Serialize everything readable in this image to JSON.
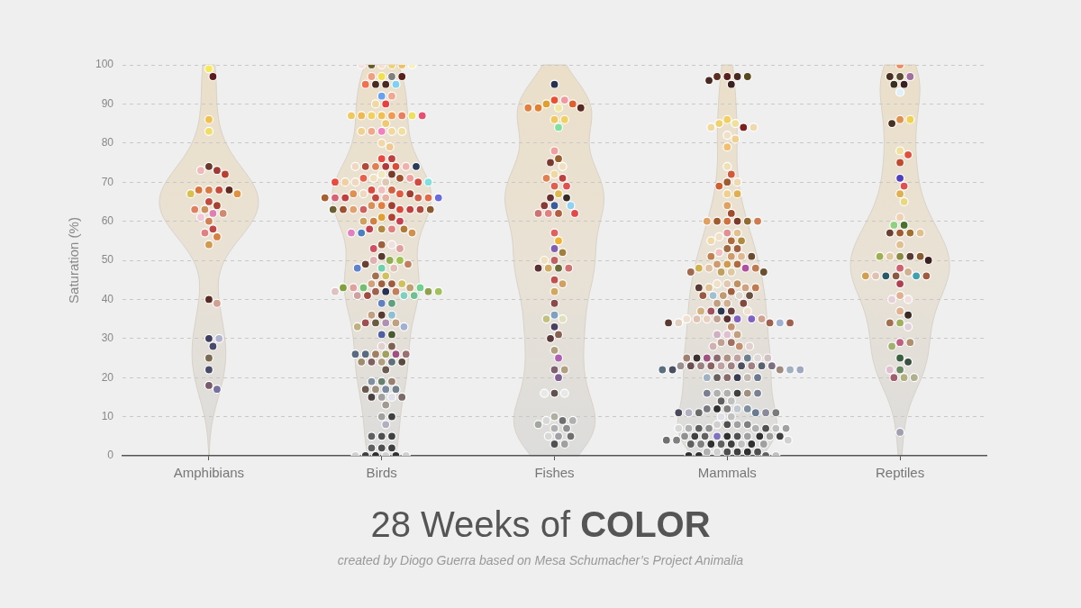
{
  "chart_data": {
    "type": "scatter",
    "title": "28 Weeks of COLOR",
    "ylabel": "Saturation (%)",
    "annotations": [
      "created by Diogo Guerra based on Mesa Schumacher’s Project Animalia"
    ],
    "categories": [
      "Amphibians",
      "Birds",
      "Fishes",
      "Mammals",
      "Reptiles"
    ],
    "ylim": [
      0,
      100
    ],
    "yticks": [
      0,
      10,
      20,
      30,
      40,
      50,
      60,
      70,
      80,
      90,
      100
    ],
    "grid": "y",
    "legend": false,
    "marker": "circle",
    "series": [
      {
        "x": [
          "Amphibians",
          "Amphibians",
          "Amphibians",
          "Amphibians",
          "Amphibians",
          "Amphibians",
          "Amphibians",
          "Amphibians",
          "Amphibians",
          "Amphibians",
          "Amphibians",
          "Amphibians",
          "Amphibians",
          "Amphibians",
          "Amphibians",
          "Amphibians",
          "Amphibians",
          "Amphibians",
          "Amphibians",
          "Amphibians",
          "Amphibians",
          "Amphibians",
          "Amphibians",
          "Amphibians",
          "Amphibians",
          "Amphibians",
          "Amphibians",
          "Amphibians",
          "Amphibians",
          "Amphibians",
          "Amphibians",
          "Amphibians",
          "Amphibians",
          "Amphibians",
          "Amphibians"
        ],
        "values": [
          99,
          97,
          86,
          83,
          74,
          73,
          73,
          72,
          68,
          68,
          68,
          68,
          67,
          67,
          65,
          64,
          63,
          63,
          62,
          62,
          61,
          60,
          58,
          57,
          56,
          54,
          40,
          39,
          30,
          30,
          28,
          25,
          22,
          18,
          17
        ],
        "colors": [
          "#f5e85a",
          "#5a1e1e",
          "#f0c050",
          "#eedd66",
          "#6b3a2a",
          "#a03a35",
          "#f0b8b8",
          "#b84030",
          "#d97a45",
          "#c84a3a",
          "#d9743d",
          "#5e2a20",
          "#d8c050",
          "#e0923f",
          "#c04a40",
          "#a84030",
          "#d0905a",
          "#e08060",
          "#e080b0",
          "#d08a70",
          "#f0c8d8",
          "#d08055",
          "#c04545",
          "#e08080",
          "#d88040",
          "#d09a50",
          "#5a2a25",
          "#d0a090",
          "#3e3e5e",
          "#b0b0d0",
          "#4a4a6a",
          "#7a6a50",
          "#4a4a6a",
          "#7a5a6a",
          "#7a70a0"
        ]
      },
      {
        "x": [
          "Birds",
          "Birds",
          "Birds",
          "Birds",
          "Birds",
          "Birds",
          "Birds",
          "Birds",
          "Birds",
          "Birds",
          "Birds",
          "Birds",
          "Birds",
          "Birds",
          "Birds",
          "Birds",
          "Birds",
          "Birds",
          "Birds",
          "Birds",
          "Birds",
          "Birds",
          "Birds",
          "Birds",
          "Birds",
          "Birds",
          "Birds",
          "Birds",
          "Birds",
          "Birds",
          "Birds",
          "Birds",
          "Birds",
          "Birds",
          "Birds",
          "Birds",
          "Birds",
          "Birds",
          "Birds",
          "Birds",
          "Birds",
          "Birds",
          "Birds",
          "Birds",
          "Birds",
          "Birds",
          "Birds",
          "Birds",
          "Birds",
          "Birds",
          "Birds",
          "Birds",
          "Birds",
          "Birds",
          "Birds",
          "Birds",
          "Birds",
          "Birds",
          "Birds",
          "Birds",
          "Birds",
          "Birds",
          "Birds",
          "Birds",
          "Birds",
          "Birds",
          "Birds",
          "Birds",
          "Birds",
          "Birds",
          "Birds",
          "Birds",
          "Birds",
          "Birds",
          "Birds",
          "Birds",
          "Birds",
          "Birds",
          "Birds",
          "Birds",
          "Birds",
          "Birds",
          "Birds",
          "Birds",
          "Birds",
          "Birds",
          "Birds",
          "Birds",
          "Birds",
          "Birds",
          "Birds",
          "Birds",
          "Birds",
          "Birds",
          "Birds",
          "Birds",
          "Birds",
          "Birds",
          "Birds",
          "Birds",
          "Birds",
          "Birds",
          "Birds",
          "Birds",
          "Birds",
          "Birds",
          "Birds",
          "Birds",
          "Birds",
          "Birds",
          "Birds",
          "Birds",
          "Birds",
          "Birds",
          "Birds",
          "Birds",
          "Birds",
          "Birds",
          "Birds",
          "Birds",
          "Birds",
          "Birds",
          "Birds",
          "Birds",
          "Birds",
          "Birds",
          "Birds",
          "Birds",
          "Birds",
          "Birds",
          "Birds",
          "Birds",
          "Birds",
          "Birds",
          "Birds",
          "Birds",
          "Birds",
          "Birds",
          "Birds",
          "Birds",
          "Birds",
          "Birds",
          "Birds",
          "Birds",
          "Birds",
          "Birds",
          "Birds",
          "Birds",
          "Birds",
          "Birds",
          "Birds",
          "Birds",
          "Birds",
          "Birds",
          "Birds",
          "Birds",
          "Birds",
          "Birds",
          "Birds",
          "Birds",
          "Birds",
          "Birds",
          "Birds",
          "Birds",
          "Birds",
          "Birds",
          "Birds",
          "Birds",
          "Birds",
          "Birds",
          "Birds",
          "Birds",
          "Birds",
          "Birds",
          "Birds",
          "Birds",
          "Birds",
          "Birds",
          "Birds",
          "Birds",
          "Birds"
        ],
        "values": [
          100,
          100,
          100,
          100,
          100,
          100,
          97,
          97,
          97,
          97,
          95,
          95,
          95,
          95,
          92,
          92,
          90,
          90,
          87,
          87,
          87,
          87,
          87,
          87,
          87,
          87,
          85,
          83,
          83,
          83,
          83,
          83,
          80,
          79,
          76,
          76,
          74,
          74,
          74,
          74,
          74,
          74,
          74,
          72,
          72,
          71,
          71,
          71,
          71,
          70,
          70,
          70,
          70,
          70,
          70,
          68,
          68,
          68,
          67,
          67,
          67,
          67,
          66,
          66,
          66,
          66,
          66,
          66,
          66,
          66,
          64,
          64,
          64,
          63,
          63,
          63,
          63,
          63,
          63,
          63,
          63,
          61,
          61,
          60,
          60,
          60,
          58,
          58,
          58,
          58,
          57,
          57,
          57,
          54,
          54,
          53,
          53,
          51,
          50,
          50,
          50,
          49,
          49,
          48,
          48,
          48,
          46,
          46,
          44,
          44,
          44,
          44,
          43,
          43,
          43,
          43,
          43,
          42,
          42,
          42,
          42,
          42,
          42,
          41,
          41,
          41,
          41,
          39,
          39,
          36,
          36,
          36,
          34,
          34,
          34,
          34,
          33,
          33,
          31,
          31,
          28,
          28,
          26,
          26,
          26,
          26,
          26,
          26,
          24,
          24,
          24,
          24,
          24,
          22,
          19,
          19,
          19,
          17,
          17,
          17,
          17,
          15,
          15,
          15,
          15,
          13,
          10,
          10,
          8,
          5,
          5,
          5,
          2,
          2,
          2,
          0,
          0,
          0,
          0,
          0,
          0
        ],
        "colors": [
          "#f8e0d0",
          "#f0d070",
          "#6a5a2a",
          "#f0c060",
          "#f8e0e0",
          "#f8f0c0",
          "#f0e050",
          "#808080",
          "#f0a080",
          "#5a2020",
          "#4a2a20",
          "#4a2a20",
          "#80d0f0",
          "#f07050",
          "#6aa0f0",
          "#f0a890",
          "#e84040",
          "#f0d8a0",
          "#f0c050",
          "#f09a50",
          "#f0d060",
          "#e88060",
          "#f0b850",
          "#f0e060",
          "#f0c860",
          "#e85070",
          "#f0c870",
          "#f080c0",
          "#f0d8a0",
          "#f0a888",
          "#f0e0a0",
          "#f0d090",
          "#f0d8a8",
          "#f0c890",
          "#e84a40",
          "#c04040",
          "#b03a3a",
          "#e08050",
          "#d84a3a",
          "#b04a3a",
          "#f0b0b0",
          "#f0d8c0",
          "#2a3a5a",
          "#f0e8c0",
          "#7a3a2a",
          "#f0e0c0",
          "#a05030",
          "#e8604a",
          "#f0a0a0",
          "#e0c8b0",
          "#f0d8c0",
          "#d04a40",
          "#f0d0a0",
          "#80e0e0",
          "#e84a40",
          "#f0c0c0",
          "#d06040",
          "#d84a40",
          "#e05a40",
          "#f0d8c0",
          "#a04030",
          "#e09050",
          "#e8b0a0",
          "#c04a40",
          "#d06048",
          "#c04040",
          "#e06a4a",
          "#d86078",
          "#6a6ae0",
          "#a86030",
          "#e08040",
          "#a04030",
          "#d8905a",
          "#d84a3a",
          "#d06060",
          "#c04040",
          "#e0a070",
          "#b04a40",
          "#a05030",
          "#8a5a30",
          "#6a6030",
          "#e0a030",
          "#b04030",
          "#d08040",
          "#c84050",
          "#d0a060",
          "#b08a40",
          "#e08080",
          "#c04050",
          "#b07a3a",
          "#4a80c0",
          "#d09050",
          "#e080c0",
          "#a06040",
          "#f0e0e0",
          "#d05060",
          "#e0a0a0",
          "#5a3a30",
          "#90b050",
          "#e0b0b0",
          "#a0c050",
          "#6a4030",
          "#c08060",
          "#70d0b0",
          "#e0c0b0",
          "#6080d0",
          "#d0c060",
          "#a07050",
          "#a06040",
          "#a05a40",
          "#d0a080",
          "#d0c060",
          "#70c070",
          "#c0a070",
          "#e0a0a0",
          "#70d090",
          "#80a040",
          "#2a3050",
          "#a06050",
          "#c08060",
          "#90a050",
          "#e0c0c0",
          "#a0c060",
          "#a04a40",
          "#80d0c0",
          "#d0a0a0",
          "#70c090",
          "#6080c0",
          "#60a080",
          "#5a3a30",
          "#90c0d0",
          "#c0a080",
          "#b090b0",
          "#6a5a40",
          "#c0a080",
          "#a05050",
          "#a0b0d0",
          "#c0b080",
          "#5060a0",
          "#4a5a30",
          "#e0d0d0",
          "#806050",
          "#a0a060",
          "#a08060",
          "#a05080",
          "#5a6a80",
          "#9a7070",
          "#5a6a80",
          "#b0a080",
          "#60707a",
          "#806060",
          "#5a4a40",
          "#a08a70",
          "#6a5a50",
          "#6a8070",
          "#9a8070",
          "#8090a0",
          "#7a8aa0",
          "#a09080",
          "#70808a",
          "#6a5a50",
          "#a0a0a0",
          "#e0e0e8",
          "#4a4040",
          "#7a6a6a",
          "#a09a90",
          "#a0a0a0",
          "#404040",
          "#b0b0c0",
          "#505050",
          "#404040",
          "#606060",
          "#505050",
          "#404040",
          "#606060",
          "#d0d0d0",
          "#303030",
          "#303030",
          "#404040",
          "#d0d0d0",
          "#d0d0d0"
        ]
      },
      {
        "x": [
          "Fishes",
          "Fishes",
          "Fishes",
          "Fishes",
          "Fishes",
          "Fishes",
          "Fishes",
          "Fishes",
          "Fishes",
          "Fishes",
          "Fishes",
          "Fishes",
          "Fishes",
          "Fishes",
          "Fishes",
          "Fishes",
          "Fishes",
          "Fishes",
          "Fishes",
          "Fishes",
          "Fishes",
          "Fishes",
          "Fishes",
          "Fishes",
          "Fishes",
          "Fishes",
          "Fishes",
          "Fishes",
          "Fishes",
          "Fishes",
          "Fishes",
          "Fishes",
          "Fishes",
          "Fishes",
          "Fishes",
          "Fishes",
          "Fishes",
          "Fishes",
          "Fishes",
          "Fishes",
          "Fishes",
          "Fishes",
          "Fishes",
          "Fishes",
          "Fishes",
          "Fishes",
          "Fishes",
          "Fishes",
          "Fishes",
          "Fishes",
          "Fishes",
          "Fishes",
          "Fishes",
          "Fishes",
          "Fishes",
          "Fishes",
          "Fishes",
          "Fishes",
          "Fishes",
          "Fishes",
          "Fishes",
          "Fishes",
          "Fishes",
          "Fishes",
          "Fishes",
          "Fishes",
          "Fishes",
          "Fishes",
          "Fishes",
          "Fishes",
          "Fishes"
        ],
        "values": [
          95,
          91,
          91,
          90,
          90,
          89,
          89,
          89,
          89,
          86,
          86,
          84,
          78,
          76,
          75,
          74,
          72,
          71,
          71,
          69,
          69,
          67,
          66,
          66,
          64,
          64,
          64,
          62,
          62,
          62,
          62,
          57,
          55,
          53,
          52,
          50,
          50,
          48,
          48,
          48,
          48,
          45,
          44,
          42,
          39,
          36,
          35,
          35,
          33,
          31,
          30,
          27,
          25,
          22,
          22,
          20,
          16,
          16,
          16,
          10,
          9,
          9,
          9,
          8,
          7,
          7,
          5,
          5,
          5,
          3,
          3
        ],
        "colors": [
          "#2a3050",
          "#e85030",
          "#f09aa0",
          "#e0a030",
          "#e06030",
          "#f0e8a0",
          "#e08030",
          "#5a2a20",
          "#e08040",
          "#f0c860",
          "#f0d060",
          "#80e0a0",
          "#f0a0a0",
          "#9a6030",
          "#7a3a30",
          "#f0e0c0",
          "#f0d8a0",
          "#c04040",
          "#e08050",
          "#e06050",
          "#e05050",
          "#e0b850",
          "#6a3030",
          "#3a2a25",
          "#3a5a9a",
          "#8a3a35",
          "#90d0f0",
          "#b06040",
          "#e08080",
          "#d07070",
          "#e04a4a",
          "#e06060",
          "#f0b030",
          "#8060b0",
          "#a08040",
          "#c06060",
          "#f0e0c0",
          "#6a6a3a",
          "#d0a860",
          "#d07070",
          "#5a3030",
          "#c05050",
          "#d0a060",
          "#d0a860",
          "#8a4a4a",
          "#80a0c0",
          "#e0e0c0",
          "#c0c080",
          "#4a4060",
          "#8a6050",
          "#5a3a3a",
          "#b0a080",
          "#b060b0",
          "#806070",
          "#b0a080",
          "#806090",
          "#605050",
          "#e8e8e8",
          "#e8e8e8",
          "#b0b0a0",
          "#707070",
          "#d8d8d8",
          "#b0b0b0",
          "#a0a8a0",
          "#b0b0b0",
          "#909090",
          "#a0a0a8",
          "#d8d8d8",
          "#707070",
          "#505050",
          "#a0a0a0"
        ]
      },
      {
        "x": [
          "Mammals",
          "Mammals",
          "Mammals",
          "Mammals",
          "Mammals",
          "Mammals",
          "Mammals",
          "Mammals",
          "Mammals",
          "Mammals",
          "Mammals",
          "Mammals",
          "Mammals",
          "Mammals",
          "Mammals",
          "Mammals",
          "Mammals",
          "Mammals",
          "Mammals",
          "Mammals",
          "Mammals",
          "Mammals",
          "Mammals",
          "Mammals",
          "Mammals",
          "Mammals",
          "Mammals",
          "Mammals",
          "Mammals",
          "Mammals",
          "Mammals",
          "Mammals",
          "Mammals",
          "Mammals",
          "Mammals",
          "Mammals",
          "Mammals",
          "Mammals",
          "Mammals",
          "Mammals",
          "Mammals",
          "Mammals",
          "Mammals",
          "Mammals",
          "Mammals",
          "Mammals",
          "Mammals",
          "Mammals",
          "Mammals",
          "Mammals",
          "Mammals",
          "Mammals",
          "Mammals",
          "Mammals",
          "Mammals",
          "Mammals",
          "Mammals",
          "Mammals",
          "Mammals",
          "Mammals",
          "Mammals",
          "Mammals",
          "Mammals",
          "Mammals",
          "Mammals",
          "Mammals",
          "Mammals",
          "Mammals",
          "Mammals",
          "Mammals",
          "Mammals",
          "Mammals",
          "Mammals",
          "Mammals",
          "Mammals",
          "Mammals",
          "Mammals",
          "Mammals",
          "Mammals",
          "Mammals",
          "Mammals",
          "Mammals",
          "Mammals",
          "Mammals",
          "Mammals",
          "Mammals",
          "Mammals",
          "Mammals",
          "Mammals",
          "Mammals",
          "Mammals",
          "Mammals",
          "Mammals",
          "Mammals",
          "Mammals",
          "Mammals",
          "Mammals",
          "Mammals",
          "Mammals",
          "Mammals",
          "Mammals",
          "Mammals",
          "Mammals",
          "Mammals",
          "Mammals",
          "Mammals",
          "Mammals",
          "Mammals",
          "Mammals",
          "Mammals",
          "Mammals",
          "Mammals",
          "Mammals",
          "Mammals",
          "Mammals",
          "Mammals",
          "Mammals",
          "Mammals",
          "Mammals",
          "Mammals",
          "Mammals",
          "Mammals",
          "Mammals",
          "Mammals",
          "Mammals",
          "Mammals",
          "Mammals",
          "Mammals",
          "Mammals",
          "Mammals",
          "Mammals",
          "Mammals",
          "Mammals",
          "Mammals",
          "Mammals",
          "Mammals",
          "Mammals",
          "Mammals",
          "Mammals",
          "Mammals",
          "Mammals",
          "Mammals",
          "Mammals",
          "Mammals",
          "Mammals",
          "Mammals",
          "Mammals",
          "Mammals",
          "Mammals",
          "Mammals",
          "Mammals",
          "Mammals",
          "Mammals",
          "Mammals",
          "Mammals",
          "Mammals",
          "Mammals",
          "Mammals",
          "Mammals",
          "Mammals",
          "Mammals",
          "Mammals",
          "Mammals",
          "Mammals",
          "Mammals",
          "Mammals",
          "Mammals",
          "Mammals",
          "Mammals",
          "Mammals",
          "Mammals",
          "Mammals",
          "Mammals",
          "Mammals",
          "Mammals",
          "Mammals",
          "Mammals",
          "Mammals",
          "Mammals",
          "Mammals",
          "Mammals",
          "Mammals",
          "Mammals",
          "Mammals",
          "Mammals",
          "Mammals",
          "Mammals",
          "Mammals",
          "Mammals",
          "Mammals",
          "Mammals"
        ],
        "values": [
          97,
          97,
          97,
          97,
          96,
          95,
          86,
          85,
          85,
          84,
          84,
          84,
          82,
          81,
          79,
          74,
          72,
          70,
          70,
          69,
          67,
          67,
          64,
          62,
          60,
          60,
          60,
          60,
          60,
          60,
          57,
          57,
          56,
          55,
          55,
          55,
          53,
          53,
          52,
          51,
          51,
          51,
          51,
          49,
          49,
          49,
          48,
          48,
          48,
          48,
          47,
          47,
          47,
          47,
          44,
          44,
          44,
          43,
          43,
          43,
          43,
          42,
          41,
          41,
          41,
          41,
          41,
          39,
          39,
          39,
          37,
          37,
          37,
          37,
          37,
          35,
          35,
          35,
          35,
          35,
          35,
          35,
          35,
          34,
          34,
          34,
          34,
          34,
          33,
          31,
          31,
          31,
          29,
          29,
          28,
          28,
          28,
          25,
          25,
          25,
          25,
          25,
          25,
          25,
          25,
          25,
          23,
          23,
          23,
          23,
          23,
          23,
          23,
          23,
          23,
          23,
          22,
          22,
          22,
          22,
          22,
          20,
          20,
          20,
          20,
          20,
          20,
          16,
          16,
          16,
          16,
          16,
          16,
          14,
          14,
          12,
          12,
          12,
          12,
          12,
          11,
          11,
          11,
          11,
          11,
          11,
          10,
          10,
          8,
          8,
          8,
          8,
          7,
          7,
          7,
          7,
          7,
          7,
          7,
          7,
          5,
          5,
          5,
          5,
          5,
          5,
          5,
          5,
          5,
          5,
          4,
          4,
          4,
          3,
          3,
          3,
          3,
          3,
          3,
          3,
          3,
          1,
          1,
          1,
          1,
          1,
          1,
          0,
          0,
          0,
          0
        ],
        "colors": [
          "#5a2020",
          "#4a2a20",
          "#5a3020",
          "#5a4a20",
          "#4a2a20",
          "#3a2020",
          "#f0d060",
          "#f0e0a0",
          "#f0d070",
          "#7a2020",
          "#f0d8a0",
          "#f0d8b0",
          "#f0e0c8",
          "#f0d090",
          "#f0c070",
          "#f0e0b8",
          "#d05a3a",
          "#a05a30",
          "#f0d8b0",
          "#d06030",
          "#f0d090",
          "#e0b050",
          "#e0a060",
          "#a04a30",
          "#d07040",
          "#7a3a2a",
          "#a05a30",
          "#906a30",
          "#e0a060",
          "#d07a50",
          "#e09090",
          "#e0c090",
          "#f0e0c8",
          "#b06a40",
          "#b08a40",
          "#f0d8a8",
          "#a06a40",
          "#a06040",
          "#f0c0c0",
          "#d09a6a",
          "#e0b890",
          "#c08050",
          "#6a4a30",
          "#d09a50",
          "#b06a40",
          "#d09a70",
          "#b050a0",
          "#e0c0a0",
          "#c07a50",
          "#d0b050",
          "#e0c8a0",
          "#c0a060",
          "#6a5030",
          "#a06a50",
          "#e0c8b0",
          "#c09060",
          "#f0e0c8",
          "#d0a080",
          "#e0c090",
          "#c07a50",
          "#5a3a30",
          "#a06040",
          "#c09a70",
          "#e0d8d0",
          "#a0c0d0",
          "#6a5040",
          "#9a5a40",
          "#d0b090",
          "#c0a080",
          "#804a40",
          "#6a4040",
          "#2a3a50",
          "#a05060",
          "#f0e0d0",
          "#d0b080",
          "#5a3030",
          "#8060c0",
          "#c0a090",
          "#e8d0c0",
          "#8060c0",
          "#e0c0b0",
          "#d0a090",
          "#f0e0d0",
          "#a06050",
          "#e0d0c0",
          "#a0b0d0",
          "#5a3a30",
          "#a06050",
          "#c09070",
          "#e0c0d0",
          "#c0a080",
          "#d0b0c0",
          "#a07060",
          "#c0a090",
          "#c09070",
          "#d0b0b0",
          "#e0d0d0",
          "#b09080",
          "#c0a0a0",
          "#8a6a70",
          "#6a8090",
          "#a05080",
          "#e0d8d8",
          "#3a3030",
          "#d0c0c0",
          "#a08070",
          "#a08080",
          "#c0a0a0",
          "#4a5060",
          "#8a6060",
          "#a08080",
          "#9a8080",
          "#5a6070",
          "#6a5050",
          "#7a7080",
          "#9a9090",
          "#a08a80",
          "#4a5060",
          "#a0b0c0",
          "#5a7080",
          "#a0a8c0",
          "#8a6a6a",
          "#3a3a50",
          "#6a6060",
          "#c0b8b0",
          "#a0b0c0",
          "#6a7a90",
          "#b0b0b0",
          "#404040",
          "#b0b0b0",
          "#a09080",
          "#7a8090",
          "#7a8090",
          "#c0c0c0",
          "#606060",
          "#808080",
          "#c0c8d0",
          "#303030",
          "#8090a0",
          "#7a7a80",
          "#6a7a90",
          "#6a6a6a",
          "#8a8a9a",
          "#b0b0c0",
          "#7a7a7a",
          "#4a4a5a",
          "#c0c0c0",
          "#e0e0e8",
          "#505050",
          "#a0a0a0",
          "#d0d0d0",
          "#808080",
          "#909090",
          "#b0b0b0",
          "#606060",
          "#505050",
          "#b0b0b0",
          "#c0c0c0",
          "#d8d8d8",
          "#a0a0a0",
          "#303030",
          "#505050",
          "#8070c0",
          "#a0a0a0",
          "#606060",
          "#303030",
          "#404040",
          "#a0a0a0",
          "#909090",
          "#404040",
          "#808080",
          "#d0d0d0",
          "#707070",
          "#404040",
          "#606060",
          "#c0c0c0",
          "#303030",
          "#303030",
          "#808080",
          "#a0a0a0",
          "#606060",
          "#505050",
          "#404040",
          "#d0d0d0",
          "#303030",
          "#b0b0b0",
          "#505050",
          "#303030",
          "#606060",
          "#303030",
          "#c0c0c0"
        ]
      },
      {
        "x": [
          "Reptiles",
          "Reptiles",
          "Reptiles",
          "Reptiles",
          "Reptiles",
          "Reptiles",
          "Reptiles",
          "Reptiles",
          "Reptiles",
          "Reptiles",
          "Reptiles",
          "Reptiles",
          "Reptiles",
          "Reptiles",
          "Reptiles",
          "Reptiles",
          "Reptiles",
          "Reptiles",
          "Reptiles",
          "Reptiles",
          "Reptiles",
          "Reptiles",
          "Reptiles",
          "Reptiles",
          "Reptiles",
          "Reptiles",
          "Reptiles",
          "Reptiles",
          "Reptiles",
          "Reptiles",
          "Reptiles",
          "Reptiles",
          "Reptiles",
          "Reptiles",
          "Reptiles",
          "Reptiles",
          "Reptiles",
          "Reptiles",
          "Reptiles",
          "Reptiles",
          "Reptiles",
          "Reptiles",
          "Reptiles",
          "Reptiles",
          "Reptiles",
          "Reptiles",
          "Reptiles",
          "Reptiles",
          "Reptiles",
          "Reptiles",
          "Reptiles",
          "Reptiles",
          "Reptiles",
          "Reptiles",
          "Reptiles",
          "Reptiles",
          "Reptiles",
          "Reptiles",
          "Reptiles"
        ],
        "values": [
          100,
          97,
          97,
          97,
          95,
          95,
          93,
          86,
          86,
          85,
          78,
          77,
          75,
          71,
          69,
          67,
          65,
          61,
          59,
          59,
          57,
          57,
          57,
          57,
          54,
          51,
          51,
          51,
          51,
          51,
          50,
          48,
          47,
          46,
          46,
          46,
          46,
          46,
          46,
          44,
          41,
          40,
          40,
          37,
          36,
          34,
          34,
          33,
          29,
          29,
          28,
          25,
          24,
          22,
          22,
          20,
          20,
          20,
          6
        ],
        "colors": [
          "#f08a60",
          "#5a4a30",
          "#a070a0",
          "#4a3020",
          "#3a2020",
          "#3a3020",
          "#e0f0f8",
          "#e09050",
          "#f0d050",
          "#4a3020",
          "#f0e0a0",
          "#e05040",
          "#c04a30",
          "#5040c0",
          "#e05050",
          "#e0b050",
          "#e8d880",
          "#f0d0b0",
          "#4a7030",
          "#90d080",
          "#a05a30",
          "#a07030",
          "#6a4030",
          "#e0c090",
          "#e0c090",
          "#8a8a40",
          "#5a3a30",
          "#e0c8a0",
          "#8a5a30",
          "#a0b050",
          "#3a2020",
          "#d06070",
          "#d0b090",
          "#8a5a40",
          "#2a5a6a",
          "#40a0b0",
          "#e0c0b0",
          "#a05a40",
          "#d0a050",
          "#b04050",
          "#e0b090",
          "#f0e0e0",
          "#e8d0d8",
          "#e0b090",
          "#3a2a25",
          "#a0b060",
          "#a07050",
          "#e0d0d8",
          "#c06080",
          "#b09070",
          "#a0b070",
          "#3a6040",
          "#3a5040",
          "#6a8a60",
          "#e0c0d0",
          "#b0b080",
          "#a06070",
          "#b0b090",
          "#a0a0b0"
        ]
      }
    ]
  }
}
